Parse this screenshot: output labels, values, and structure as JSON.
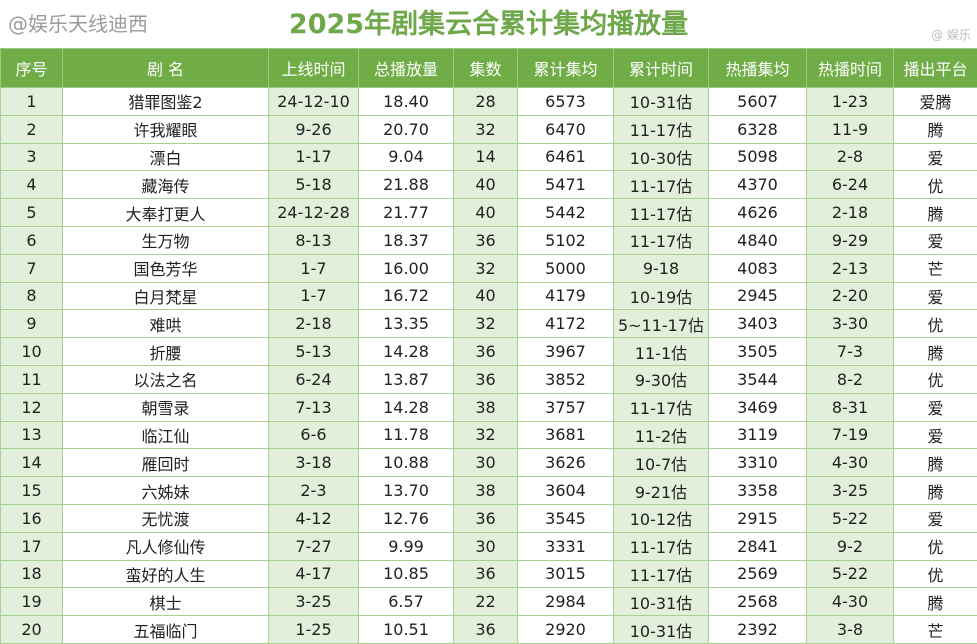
{
  "title": "2025年剧集云合累计集均播放量",
  "watermark_top": "@ 娱乐",
  "watermark": "@娱乐天线迪西",
  "colors": {
    "header": "#70ad47",
    "title": "#6fa84a",
    "shade": "#e2efda"
  },
  "columns": [
    "序号",
    "剧 名",
    "上线时间",
    "总播放量",
    "集数",
    "累计集均",
    "累计时间",
    "热播集均",
    "热播时间",
    "播出平台"
  ],
  "rows": [
    [
      "1",
      "猎罪图鉴2",
      "24-12-10",
      "18.40",
      "28",
      "6573",
      "10-31估",
      "5607",
      "1-23",
      "爱腾"
    ],
    [
      "2",
      "许我耀眼",
      "9-26",
      "20.70",
      "32",
      "6470",
      "11-17估",
      "6328",
      "11-9",
      "腾"
    ],
    [
      "3",
      "漂白",
      "1-17",
      "9.04",
      "14",
      "6461",
      "10-30估",
      "5098",
      "2-8",
      "爱"
    ],
    [
      "4",
      "藏海传",
      "5-18",
      "21.88",
      "40",
      "5471",
      "11-17估",
      "4370",
      "6-24",
      "优"
    ],
    [
      "5",
      "大奉打更人",
      "24-12-28",
      "21.77",
      "40",
      "5442",
      "11-17估",
      "4626",
      "2-18",
      "腾"
    ],
    [
      "6",
      "生万物",
      "8-13",
      "18.37",
      "36",
      "5102",
      "11-17估",
      "4840",
      "9-29",
      "爱"
    ],
    [
      "7",
      "国色芳华",
      "1-7",
      "16.00",
      "32",
      "5000",
      "9-18",
      "4083",
      "2-13",
      "芒"
    ],
    [
      "8",
      "白月梵星",
      "1-7",
      "16.72",
      "40",
      "4179",
      "10-19估",
      "2945",
      "2-20",
      "爱"
    ],
    [
      "9",
      "难哄",
      "2-18",
      "13.35",
      "32",
      "4172",
      "5~11-17估",
      "3403",
      "3-30",
      "优"
    ],
    [
      "10",
      "折腰",
      "5-13",
      "14.28",
      "36",
      "3967",
      "11-1估",
      "3505",
      "7-3",
      "腾"
    ],
    [
      "11",
      "以法之名",
      "6-24",
      "13.87",
      "36",
      "3852",
      "9-30估",
      "3544",
      "8-2",
      "优"
    ],
    [
      "12",
      "朝雪录",
      "7-13",
      "14.28",
      "38",
      "3757",
      "11-17估",
      "3469",
      "8-31",
      "爱"
    ],
    [
      "13",
      "临江仙",
      "6-6",
      "11.78",
      "32",
      "3681",
      "11-2估",
      "3119",
      "7-19",
      "爱"
    ],
    [
      "14",
      "雁回时",
      "3-18",
      "10.88",
      "30",
      "3626",
      "10-7估",
      "3310",
      "4-30",
      "腾"
    ],
    [
      "15",
      "六姊妹",
      "2-3",
      "13.70",
      "38",
      "3604",
      "9-21估",
      "3358",
      "3-25",
      "腾"
    ],
    [
      "16",
      "无忧渡",
      "4-12",
      "12.76",
      "36",
      "3545",
      "10-12估",
      "2915",
      "5-22",
      "爱"
    ],
    [
      "17",
      "凡人修仙传",
      "7-27",
      "9.99",
      "30",
      "3331",
      "11-17估",
      "2841",
      "9-2",
      "优"
    ],
    [
      "18",
      "蛮好的人生",
      "4-17",
      "10.85",
      "36",
      "3015",
      "11-17估",
      "2569",
      "5-22",
      "优"
    ],
    [
      "19",
      "棋士",
      "3-25",
      "6.57",
      "22",
      "2984",
      "10-31估",
      "2568",
      "4-30",
      "腾"
    ],
    [
      "20",
      "五福临门",
      "1-25",
      "10.51",
      "36",
      "2920",
      "10-31估",
      "2392",
      "3-8",
      "芒"
    ]
  ]
}
